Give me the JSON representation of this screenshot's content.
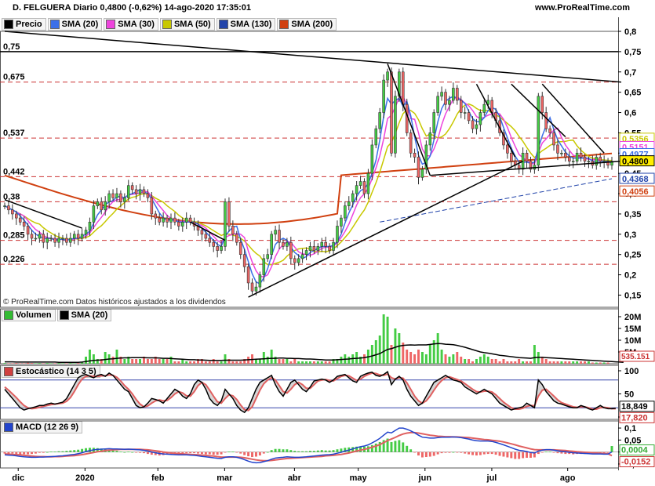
{
  "header": {
    "title": "D. FELGUERA Diario 0,4800 (-0,62%) 14-ago-2020 17:35:01",
    "site": "www.ProRealTime.com"
  },
  "price_legend": [
    {
      "label": "Precio",
      "color": "#000000"
    },
    {
      "label": "SMA (20)",
      "color": "#3b6fe8"
    },
    {
      "label": "SMA (30)",
      "color": "#ee44dd"
    },
    {
      "label": "SMA (50)",
      "color": "#c8c800"
    },
    {
      "label": "SMA (130)",
      "color": "#2244aa"
    },
    {
      "label": "SMA (200)",
      "color": "#d04010"
    }
  ],
  "volume_legend": [
    {
      "label": "Volumen",
      "color": "#33bb33"
    },
    {
      "label": "SMA (20)",
      "color": "#000000"
    }
  ],
  "stoch_legend": [
    {
      "label": "Estocástico (14 3 5)",
      "color": "#d04040"
    }
  ],
  "macd_legend": [
    {
      "label": "MACD (12 26 9)",
      "color": "#2244cc"
    }
  ],
  "note": "© ProRealTime.com Datos históricos ajustados a los dividendos",
  "chart_data": {
    "type": "candlestick",
    "x_labels": [
      "dic",
      "2020",
      "feb",
      "mar",
      "abr",
      "may",
      "jun",
      "jul",
      "ago"
    ],
    "price": {
      "ylim": [
        0.12,
        0.8
      ],
      "y_ticks": [
        "0,8",
        "0,75",
        "0,7",
        "0,65",
        "0,6",
        "0,55",
        "0,5",
        "0,45",
        "0,4",
        "0,35",
        "0,3",
        "0,25",
        "0,2",
        "0,15"
      ],
      "y_tick_values": [
        0.8,
        0.75,
        0.7,
        0.65,
        0.6,
        0.55,
        0.5,
        0.45,
        0.4,
        0.35,
        0.3,
        0.25,
        0.2,
        0.15
      ],
      "level_labels": [
        "0,75",
        "0,675",
        "0,537",
        "0,442",
        "0,38",
        "0,285",
        "0,226"
      ],
      "level_values": [
        0.75,
        0.675,
        0.537,
        0.442,
        0.38,
        0.285,
        0.226
      ],
      "value_tags": [
        {
          "text": "0,5356",
          "value": 0.5356,
          "color": "#c8c800"
        },
        {
          "text": "0,5151",
          "value": 0.5151,
          "color": "#ee44dd"
        },
        {
          "text": "0,4977",
          "value": 0.4977,
          "color": "#3b6fe8"
        },
        {
          "text": "0,4800",
          "value": 0.48,
          "color": "#000000",
          "highlight": "#ffee00"
        },
        {
          "text": "0,4368",
          "value": 0.4368,
          "color": "#2244aa"
        },
        {
          "text": "0,4056",
          "value": 0.4056,
          "color": "#d04010"
        }
      ],
      "closes": [
        0.37,
        0.36,
        0.35,
        0.34,
        0.33,
        0.32,
        0.3,
        0.29,
        0.29,
        0.3,
        0.28,
        0.29,
        0.29,
        0.28,
        0.29,
        0.29,
        0.28,
        0.29,
        0.3,
        0.29,
        0.3,
        0.31,
        0.33,
        0.37,
        0.38,
        0.36,
        0.38,
        0.4,
        0.39,
        0.4,
        0.38,
        0.39,
        0.42,
        0.41,
        0.4,
        0.41,
        0.4,
        0.39,
        0.35,
        0.34,
        0.33,
        0.34,
        0.33,
        0.34,
        0.33,
        0.32,
        0.33,
        0.34,
        0.33,
        0.32,
        0.31,
        0.3,
        0.29,
        0.28,
        0.27,
        0.26,
        0.27,
        0.38,
        0.32,
        0.3,
        0.28,
        0.25,
        0.22,
        0.18,
        0.16,
        0.17,
        0.2,
        0.24,
        0.25,
        0.3,
        0.31,
        0.28,
        0.27,
        0.28,
        0.24,
        0.23,
        0.24,
        0.25,
        0.26,
        0.27,
        0.26,
        0.27,
        0.28,
        0.27,
        0.26,
        0.28,
        0.32,
        0.34,
        0.37,
        0.38,
        0.4,
        0.42,
        0.43,
        0.4,
        0.45,
        0.52,
        0.56,
        0.6,
        0.68,
        0.7,
        0.5,
        0.64,
        0.7,
        0.62,
        0.55,
        0.5,
        0.49,
        0.44,
        0.46,
        0.52,
        0.55,
        0.6,
        0.64,
        0.65,
        0.62,
        0.63,
        0.66,
        0.63,
        0.6,
        0.6,
        0.58,
        0.56,
        0.57,
        0.6,
        0.62,
        0.63,
        0.6,
        0.58,
        0.55,
        0.52,
        0.5,
        0.48,
        0.47,
        0.46,
        0.5,
        0.48,
        0.46,
        0.47,
        0.64,
        0.6,
        0.56,
        0.55,
        0.52,
        0.5,
        0.5,
        0.49,
        0.48,
        0.48,
        0.5,
        0.49,
        0.48,
        0.48,
        0.47,
        0.49,
        0.48,
        0.48,
        0.47,
        0.48
      ],
      "sma20_last": 0.4977,
      "sma30_last": 0.5151,
      "sma50_last": 0.5356,
      "sma130_last": 0.4368,
      "sma200_last": 0.4056,
      "trendlines": [
        {
          "from": [
            0,
            0.8
          ],
          "to": [
            163,
            0.675
          ]
        },
        {
          "from": [
            63,
            0.145
          ],
          "to": [
            134,
            0.48
          ]
        },
        {
          "from": [
            0,
            0.385
          ],
          "to": [
            20,
            0.315
          ]
        },
        {
          "from": [
            48,
            0.33
          ],
          "to": [
            57,
            0.285
          ]
        },
        {
          "from": [
            99,
            0.72
          ],
          "to": [
            110,
            0.445
          ]
        },
        {
          "from": [
            110,
            0.445
          ],
          "to": [
            163,
            0.48
          ]
        },
        {
          "from": [
            122,
            0.67
          ],
          "to": [
            132,
            0.49
          ]
        },
        {
          "from": [
            131,
            0.67
          ],
          "to": [
            145,
            0.54
          ]
        },
        {
          "from": [
            139,
            0.67
          ],
          "to": [
            155,
            0.5
          ]
        }
      ]
    },
    "volume": {
      "y_ticks": [
        "20M",
        "15M",
        "10M",
        "5M"
      ],
      "y_tick_values": [
        20,
        15,
        10,
        5
      ],
      "last_label": "535.151",
      "values_m": [
        0.3,
        0.2,
        0.2,
        0.3,
        0.2,
        0.2,
        0.4,
        0.3,
        0.2,
        0.3,
        0.2,
        0.3,
        0.2,
        0.2,
        0.3,
        0.2,
        0.2,
        0.3,
        0.2,
        0.3,
        0.5,
        3,
        6,
        4,
        2,
        2,
        5,
        4,
        3,
        6,
        3,
        2,
        3,
        2,
        2,
        2,
        3,
        2,
        2,
        3,
        2,
        2,
        2,
        3,
        1,
        1,
        2,
        1,
        1,
        1,
        2,
        2,
        1,
        1,
        2,
        1,
        1,
        4,
        2,
        1,
        1,
        1,
        2,
        3,
        4,
        2,
        2,
        5,
        3,
        6,
        3,
        2,
        2,
        2,
        1,
        2,
        1,
        1,
        1,
        1,
        1,
        1,
        1,
        1,
        1,
        2,
        2,
        3,
        4,
        3,
        4,
        5,
        3,
        4,
        6,
        8,
        10,
        12,
        21,
        20,
        8,
        15,
        13,
        9,
        6,
        5,
        4,
        6,
        5,
        4,
        8,
        10,
        13,
        6,
        4,
        3,
        4,
        5,
        3,
        2,
        2,
        1,
        2,
        3,
        4,
        3,
        2,
        2,
        1,
        2,
        1,
        1,
        1,
        2,
        1,
        1,
        1,
        8,
        5,
        3,
        2,
        1,
        1,
        1,
        1,
        1,
        1,
        1,
        1,
        1,
        1,
        1,
        0.5,
        0.5,
        0.5,
        0.5,
        0.5
      ],
      "sma_values_m": [
        0.8,
        0.8,
        0.8,
        0.7,
        0.7,
        0.7,
        0.7,
        0.7,
        0.7,
        0.7,
        0.7,
        0.7,
        0.7,
        0.7,
        0.6,
        0.6,
        0.6,
        0.6,
        0.6,
        0.6,
        0.7,
        0.9,
        1.2,
        1.4,
        1.5,
        1.6,
        1.8,
        2,
        2.1,
        2.3,
        2.4,
        2.5,
        2.5,
        2.6,
        2.6,
        2.6,
        2.6,
        2.5,
        2.5,
        2.5,
        2.4,
        2.3,
        2.3,
        2.2,
        2.1,
        2,
        1.9,
        1.8,
        1.7,
        1.7,
        1.6,
        1.6,
        1.5,
        1.4,
        1.4,
        1.4,
        1.4,
        1.5,
        1.5,
        1.5,
        1.5,
        1.5,
        1.6,
        1.7,
        1.8,
        1.9,
        2,
        2.1,
        2.2,
        2.3,
        2.3,
        2.4,
        2.4,
        2.3,
        2.3,
        2.2,
        2.2,
        2.1,
        2,
        2,
        1.9,
        1.8,
        1.7,
        1.6,
        1.6,
        1.6,
        1.7,
        1.8,
        1.9,
        2,
        2.2,
        2.3,
        2.4,
        2.6,
        2.9,
        3.3,
        3.8,
        4.3,
        5.2,
        6.1,
        6.4,
        7,
        7.5,
        7.8,
        7.9,
        8,
        7.9,
        8,
        8,
        8,
        8.2,
        8.4,
        8.6,
        8.5,
        8.3,
        8.2,
        8.1,
        7.8,
        7.4,
        7,
        6.5,
        6,
        5.5,
        5,
        4.7,
        4.5,
        4.2,
        3.9,
        3.6,
        3.4,
        3.2,
        3,
        2.8,
        2.6,
        2.5,
        2.4,
        2.3,
        2.6,
        2.7,
        2.7,
        2.6,
        2.5,
        2.4,
        2.3,
        2.2,
        2.1,
        2,
        1.9,
        1.8,
        1.7,
        1.6,
        1.5,
        1.4,
        1.3,
        1.2,
        1.1,
        1,
        0.9,
        0.8,
        0.7,
        0.6
      ]
    },
    "stochastic": {
      "y_ticks": [
        "100",
        "50",
        "0"
      ],
      "y_tick_values": [
        100,
        50,
        0
      ],
      "levels": [
        80,
        20
      ],
      "k_label": "18,849",
      "d_label": "17,820",
      "k": [
        60,
        50,
        40,
        30,
        20,
        15,
        18,
        20,
        22,
        25,
        25,
        28,
        30,
        28,
        30,
        32,
        40,
        55,
        70,
        85,
        90,
        92,
        88,
        85,
        90,
        92,
        88,
        95,
        90,
        80,
        70,
        60,
        55,
        40,
        25,
        20,
        22,
        30,
        40,
        38,
        35,
        30,
        40,
        50,
        60,
        55,
        45,
        40,
        50,
        70,
        80,
        75,
        60,
        40,
        30,
        25,
        35,
        60,
        50,
        40,
        25,
        15,
        10,
        20,
        40,
        60,
        75,
        80,
        85,
        90,
        70,
        55,
        45,
        60,
        75,
        80,
        70,
        60,
        55,
        65,
        78,
        80,
        82,
        80,
        75,
        80,
        88,
        90,
        92,
        85,
        78,
        75,
        88,
        92,
        95,
        97,
        90,
        88,
        92,
        98,
        70,
        82,
        88,
        80,
        60,
        45,
        35,
        25,
        30,
        45,
        60,
        75,
        80,
        85,
        90,
        85,
        80,
        78,
        75,
        65,
        60,
        55,
        50,
        55,
        60,
        55,
        50,
        40,
        30,
        25,
        20,
        15,
        18,
        20,
        22,
        30,
        25,
        20,
        80,
        70,
        55,
        45,
        35,
        30,
        28,
        25,
        22,
        20,
        20,
        25,
        22,
        18,
        15,
        20,
        25,
        20,
        18,
        18,
        19
      ],
      "d": [
        65,
        58,
        50,
        42,
        33,
        25,
        20,
        18,
        19,
        21,
        23,
        25,
        27,
        28,
        29,
        30,
        34,
        42,
        55,
        70,
        82,
        88,
        89,
        88,
        88,
        89,
        89,
        91,
        90,
        86,
        78,
        68,
        60,
        50,
        38,
        28,
        22,
        24,
        30,
        35,
        37,
        35,
        36,
        42,
        50,
        55,
        52,
        46,
        45,
        55,
        68,
        75,
        70,
        58,
        45,
        33,
        30,
        40,
        48,
        46,
        38,
        26,
        16,
        14,
        22,
        40,
        58,
        72,
        80,
        85,
        80,
        68,
        55,
        52,
        60,
        70,
        75,
        70,
        62,
        62,
        70,
        78,
        80,
        81,
        79,
        78,
        83,
        88,
        90,
        89,
        84,
        79,
        82,
        88,
        92,
        95,
        94,
        91,
        90,
        93,
        85,
        82,
        85,
        84,
        74,
        60,
        45,
        35,
        30,
        35,
        45,
        58,
        70,
        79,
        85,
        87,
        84,
        81,
        78,
        72,
        66,
        60,
        55,
        54,
        56,
        56,
        54,
        48,
        40,
        32,
        26,
        20,
        17,
        17,
        19,
        23,
        25,
        24,
        45,
        58,
        60,
        53,
        45,
        37,
        31,
        28,
        25,
        22,
        21,
        22,
        22,
        20,
        17,
        17,
        20,
        21,
        20,
        18,
        18
      ]
    },
    "macd": {
      "y_ticks": [
        "0,1",
        "0,05",
        "0",
        "-0,05"
      ],
      "y_tick_values": [
        0.1,
        0.05,
        0,
        -0.05
      ],
      "macd_label": "0,0004",
      "signal_label": "-0,0152",
      "macd": [
        -0.012,
        -0.013,
        -0.014,
        -0.016,
        -0.018,
        -0.02,
        -0.021,
        -0.022,
        -0.022,
        -0.021,
        -0.021,
        -0.02,
        -0.019,
        -0.018,
        -0.017,
        -0.016,
        -0.014,
        -0.012,
        -0.01,
        -0.007,
        -0.003,
        0.002,
        0.006,
        0.009,
        0.011,
        0.012,
        0.013,
        0.014,
        0.013,
        0.013,
        0.012,
        0.011,
        0.012,
        0.011,
        0.01,
        0.009,
        0.007,
        0.004,
        0.0,
        -0.003,
        -0.006,
        -0.008,
        -0.009,
        -0.01,
        -0.011,
        -0.012,
        -0.012,
        -0.012,
        -0.013,
        -0.014,
        -0.016,
        -0.018,
        -0.02,
        -0.022,
        -0.024,
        -0.026,
        -0.027,
        -0.022,
        -0.02,
        -0.02,
        -0.022,
        -0.026,
        -0.032,
        -0.038,
        -0.043,
        -0.045,
        -0.044,
        -0.04,
        -0.036,
        -0.03,
        -0.025,
        -0.023,
        -0.022,
        -0.02,
        -0.021,
        -0.022,
        -0.022,
        -0.021,
        -0.02,
        -0.018,
        -0.017,
        -0.015,
        -0.013,
        -0.012,
        -0.011,
        -0.009,
        -0.005,
        -0.001,
        0.004,
        0.008,
        0.013,
        0.018,
        0.022,
        0.025,
        0.03,
        0.038,
        0.047,
        0.057,
        0.07,
        0.083,
        0.08,
        0.09,
        0.1,
        0.1,
        0.095,
        0.088,
        0.08,
        0.07,
        0.062,
        0.06,
        0.058,
        0.058,
        0.06,
        0.062,
        0.062,
        0.062,
        0.063,
        0.062,
        0.06,
        0.057,
        0.054,
        0.05,
        0.047,
        0.046,
        0.046,
        0.046,
        0.044,
        0.04,
        0.035,
        0.03,
        0.024,
        0.018,
        0.012,
        0.007,
        0.005,
        0.002,
        -0.002,
        -0.004,
        0.004,
        0.008,
        0.01,
        0.01,
        0.008,
        0.005,
        0.003,
        0.001,
        -0.001,
        -0.003,
        -0.004,
        -0.005,
        -0.006,
        -0.007,
        -0.008,
        -0.008,
        -0.008,
        -0.009,
        -0.009,
        0.0004
      ],
      "signal": [
        -0.008,
        -0.009,
        -0.01,
        -0.011,
        -0.012,
        -0.014,
        -0.015,
        -0.017,
        -0.018,
        -0.019,
        -0.019,
        -0.02,
        -0.02,
        -0.019,
        -0.019,
        -0.018,
        -0.017,
        -0.016,
        -0.015,
        -0.013,
        -0.011,
        -0.008,
        -0.005,
        -0.002,
        0.001,
        0.003,
        0.006,
        0.008,
        0.009,
        0.01,
        0.011,
        0.011,
        0.011,
        0.011,
        0.011,
        0.011,
        0.01,
        0.009,
        0.007,
        0.005,
        0.003,
        0.0,
        -0.002,
        -0.004,
        -0.006,
        -0.007,
        -0.008,
        -0.009,
        -0.01,
        -0.011,
        -0.012,
        -0.013,
        -0.014,
        -0.016,
        -0.017,
        -0.019,
        -0.021,
        -0.021,
        -0.021,
        -0.021,
        -0.021,
        -0.022,
        -0.024,
        -0.027,
        -0.03,
        -0.033,
        -0.035,
        -0.036,
        -0.036,
        -0.035,
        -0.033,
        -0.031,
        -0.029,
        -0.027,
        -0.026,
        -0.025,
        -0.024,
        -0.023,
        -0.022,
        -0.021,
        -0.02,
        -0.019,
        -0.018,
        -0.016,
        -0.015,
        -0.014,
        -0.012,
        -0.01,
        -0.007,
        -0.004,
        0.0,
        0.004,
        0.008,
        0.011,
        0.015,
        0.02,
        0.025,
        0.031,
        0.039,
        0.048,
        0.054,
        0.061,
        0.069,
        0.075,
        0.079,
        0.081,
        0.081,
        0.079,
        0.076,
        0.073,
        0.07,
        0.068,
        0.066,
        0.065,
        0.064,
        0.064,
        0.063,
        0.063,
        0.062,
        0.061,
        0.06,
        0.058,
        0.056,
        0.054,
        0.052,
        0.051,
        0.049,
        0.047,
        0.045,
        0.042,
        0.038,
        0.034,
        0.03,
        0.025,
        0.021,
        0.017,
        0.013,
        0.01,
        0.009,
        0.009,
        0.009,
        0.009,
        0.009,
        0.008,
        0.007,
        0.006,
        0.004,
        0.003,
        0.001,
        0.0,
        -0.001,
        -0.002,
        -0.003,
        -0.004,
        -0.005,
        -0.006,
        -0.007,
        -0.0152
      ]
    }
  }
}
